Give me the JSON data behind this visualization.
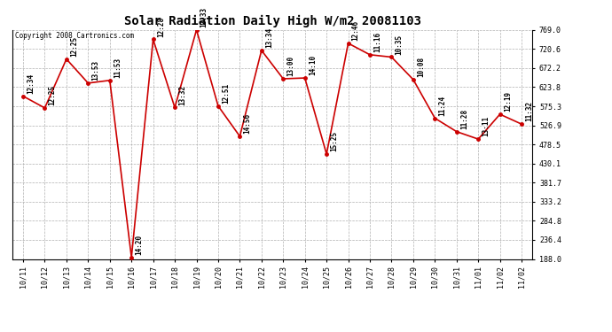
{
  "title": "Solar Radiation Daily High W/m2 20081103",
  "copyright": "Copyright 2008 Cartronics.com",
  "background_color": "#ffffff",
  "plot_bg_color": "#ffffff",
  "grid_color": "#b0b0b0",
  "line_color": "#cc0000",
  "marker_color": "#cc0000",
  "dates": [
    "10/11",
    "10/12",
    "10/13",
    "10/14",
    "10/15",
    "10/16",
    "10/17",
    "10/18",
    "10/19",
    "10/20",
    "10/21",
    "10/22",
    "10/23",
    "10/24",
    "10/25",
    "10/26",
    "10/27",
    "10/28",
    "10/29",
    "10/30",
    "10/31",
    "11/01",
    "11/02",
    "11/02"
  ],
  "values": [
    601,
    571,
    695,
    634,
    641,
    192,
    745,
    572,
    769,
    576,
    499,
    717,
    645,
    647,
    454,
    735,
    706,
    700,
    643,
    545,
    511,
    492,
    555,
    530
  ],
  "labels": [
    "12:34",
    "12:25",
    "12:25",
    "13:53",
    "11:53",
    "14:20",
    "12:28",
    "13:32",
    "12:33",
    "12:51",
    "14:56",
    "13:34",
    "13:00",
    "14:10",
    "15:25",
    "12:46",
    "11:16",
    "10:35",
    "10:08",
    "11:24",
    "11:28",
    "13:11",
    "12:19",
    "11:32"
  ],
  "ylim_min": 188.0,
  "ylim_max": 769.0,
  "yticks": [
    188.0,
    236.4,
    284.8,
    333.2,
    381.7,
    430.1,
    478.5,
    526.9,
    575.3,
    623.8,
    672.2,
    720.6,
    769.0
  ],
  "title_fontsize": 10,
  "label_fontsize": 5.5,
  "tick_fontsize": 6,
  "copyright_fontsize": 5.5
}
